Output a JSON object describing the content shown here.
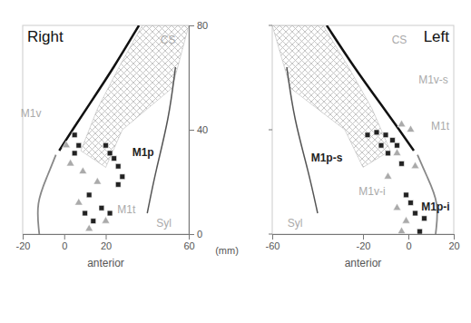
{
  "chart_data": [
    {
      "type": "scatter",
      "title": "Right",
      "xlabel": "anterior",
      "ylabel": "(mm)",
      "xlim": [
        -20,
        60
      ],
      "xticks": [
        -20,
        0,
        20,
        60
      ],
      "ylim": [
        0,
        80
      ],
      "yticks": [
        0,
        40,
        80
      ],
      "series": [
        {
          "color": "#222222",
          "marker": "square",
          "x": [
            5,
            7,
            5,
            20,
            22,
            24,
            26,
            28,
            26,
            12,
            18,
            22,
            10,
            14
          ],
          "values": [
            38,
            34,
            31,
            34,
            31,
            29,
            26,
            22,
            19,
            15,
            10,
            8,
            8,
            5
          ]
        },
        {
          "color": "#aaaaaa",
          "marker": "triangle",
          "x": [
            1,
            3,
            9,
            16,
            7,
            20,
            12
          ],
          "values": [
            34,
            27,
            24,
            20,
            12,
            5,
            2
          ]
        }
      ],
      "annotations": [
        {
          "text": "CS",
          "x": 50,
          "y": 74,
          "color": "#aaaaaa"
        },
        {
          "text": "M1v",
          "x": -16,
          "y": 46,
          "color": "#aaaaaa"
        },
        {
          "text": "M1p",
          "x": 38,
          "y": 31,
          "color": "#222222"
        },
        {
          "text": "M1t",
          "x": 30,
          "y": 9,
          "color": "#aaaaaa"
        },
        {
          "text": "Syl",
          "x": 48,
          "y": 4,
          "color": "#aaaaaa"
        }
      ]
    },
    {
      "type": "scatter",
      "title": "Left",
      "xlabel": "anterior",
      "tick_labels": "x",
      "xlim": [
        -60,
        20
      ],
      "xticks": [
        -60,
        -20,
        0,
        20
      ],
      "ylim": [
        0,
        80
      ],
      "yticks": [
        0,
        40,
        80
      ],
      "series": [
        {
          "color": "#222222",
          "marker": "square",
          "x": [
            -18,
            -14,
            -10,
            -7,
            -5,
            -12,
            -9,
            -3,
            1,
            3,
            7,
            -1,
            5
          ],
          "values": [
            38,
            39,
            38,
            36,
            34,
            34,
            31,
            27,
            12,
            8,
            6,
            15,
            1
          ]
        },
        {
          "color": "#aaaaaa",
          "marker": "triangle",
          "x": [
            -3,
            1,
            -5,
            3,
            -9,
            -5,
            -1,
            -3
          ],
          "values": [
            42,
            40,
            31,
            26,
            22,
            10,
            5,
            1
          ]
        }
      ],
      "annotations": [
        {
          "text": "CS",
          "x": -4,
          "y": 74,
          "color": "#aaaaaa"
        },
        {
          "text": "M1v-s",
          "x": 11,
          "y": 59,
          "color": "#aaaaaa"
        },
        {
          "text": "M1p-s",
          "x": -36,
          "y": 29,
          "color": "#222222"
        },
        {
          "text": "M1t",
          "x": 14,
          "y": 41,
          "color": "#aaaaaa"
        },
        {
          "text": "M1v-i",
          "x": -16,
          "y": 16,
          "color": "#aaaaaa"
        },
        {
          "text": "M1p-i",
          "x": 12,
          "y": 10,
          "color": "#222222"
        },
        {
          "text": "Syl",
          "x": -50,
          "y": 4,
          "color": "#aaaaaa"
        }
      ]
    }
  ]
}
